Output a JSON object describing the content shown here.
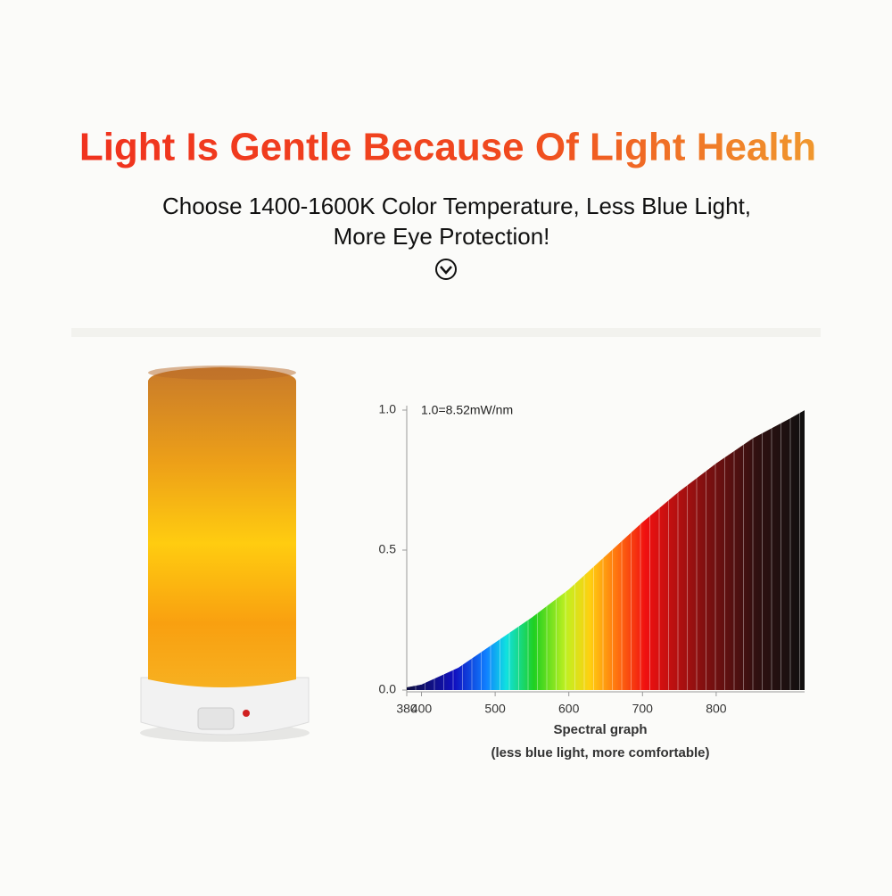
{
  "header": {
    "title": "Light Is Gentle Because Of Light Health",
    "subtitle": [
      "Choose 1400-1600K Color Temperature, Less Blue Light,",
      "More Eye Protection!"
    ]
  },
  "chart_data": {
    "type": "area",
    "annotation": "1.0=8.52mW/nm",
    "x_label": "Spectral graph",
    "caption": "(less blue light, more comfortable)",
    "x": [
      380,
      400,
      450,
      500,
      550,
      600,
      650,
      700,
      750,
      800,
      850,
      900,
      920
    ],
    "values": [
      0.01,
      0.02,
      0.08,
      0.17,
      0.26,
      0.36,
      0.48,
      0.6,
      0.71,
      0.81,
      0.9,
      0.97,
      1.0
    ],
    "xlim": [
      380,
      920
    ],
    "xticks": [
      380,
      400,
      500,
      600,
      700,
      800
    ],
    "ylim": [
      0,
      1
    ],
    "yticks": [
      {
        "value": 0,
        "label": "0.0"
      },
      0.5,
      {
        "value": 1,
        "label": "1.0"
      }
    ]
  }
}
